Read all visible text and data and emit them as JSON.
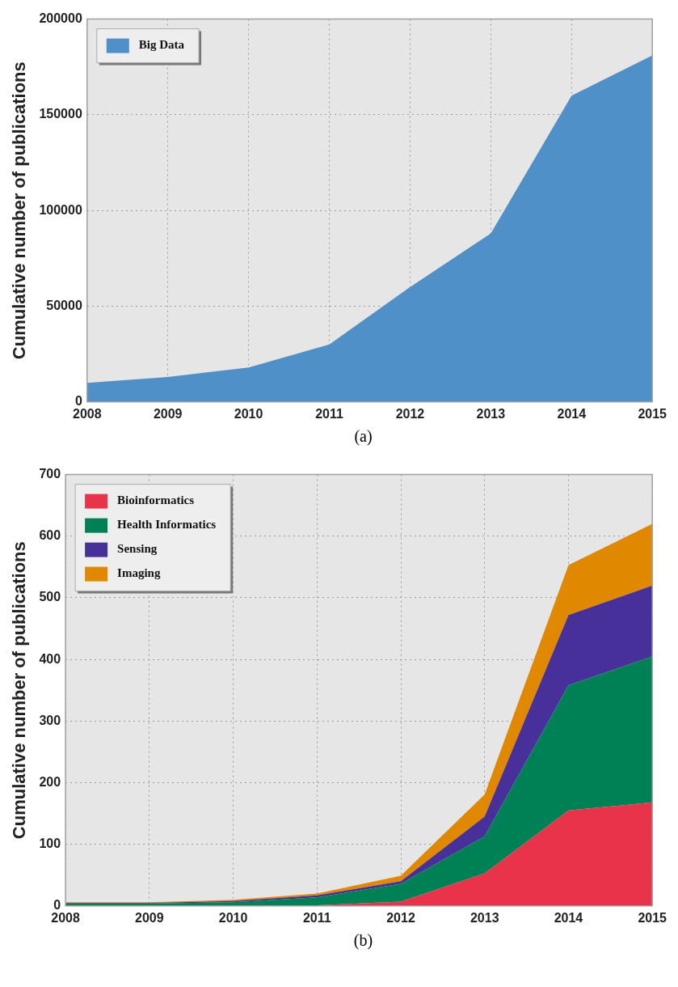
{
  "chart_data": [
    {
      "type": "area",
      "categories": [
        "2008",
        "2009",
        "2010",
        "2011",
        "2012",
        "2013",
        "2014",
        "2015"
      ],
      "ylabel": "Cumulative number of publications",
      "ylim": [
        0,
        200000
      ],
      "yticks": [
        0,
        50000,
        100000,
        150000,
        200000
      ],
      "grid": true,
      "legend": "top left",
      "annotations": [
        "(a)"
      ],
      "series": [
        {
          "name": "Big Data",
          "color": "#5090c8",
          "values": [
            10000,
            13000,
            18000,
            30000,
            60000,
            88000,
            160000,
            181000
          ]
        }
      ]
    },
    {
      "type": "area",
      "stacked": true,
      "categories": [
        "2008",
        "2009",
        "2010",
        "2011",
        "2012",
        "2013",
        "2014",
        "2015"
      ],
      "ylabel": "Cumulative number of publications",
      "ylim": [
        0,
        700
      ],
      "yticks": [
        0,
        100,
        200,
        300,
        400,
        500,
        600,
        700
      ],
      "grid": true,
      "legend": "top left",
      "annotations": [
        "(b)"
      ],
      "series": [
        {
          "name": "Bioinformatics",
          "color": "#e8334a",
          "values": [
            0,
            0,
            0,
            1,
            7,
            53,
            155,
            168
          ]
        },
        {
          "name": "Health Informatics",
          "color": "#008055",
          "values": [
            4,
            4,
            6,
            13,
            29,
            60,
            203,
            237
          ]
        },
        {
          "name": "Sensing",
          "color": "#48309a",
          "values": [
            1,
            1,
            2,
            3,
            4,
            32,
            114,
            115
          ]
        },
        {
          "name": "Imaging",
          "color": "#e08800",
          "values": [
            1,
            1,
            2,
            3,
            9,
            36,
            81,
            100
          ]
        }
      ]
    }
  ]
}
